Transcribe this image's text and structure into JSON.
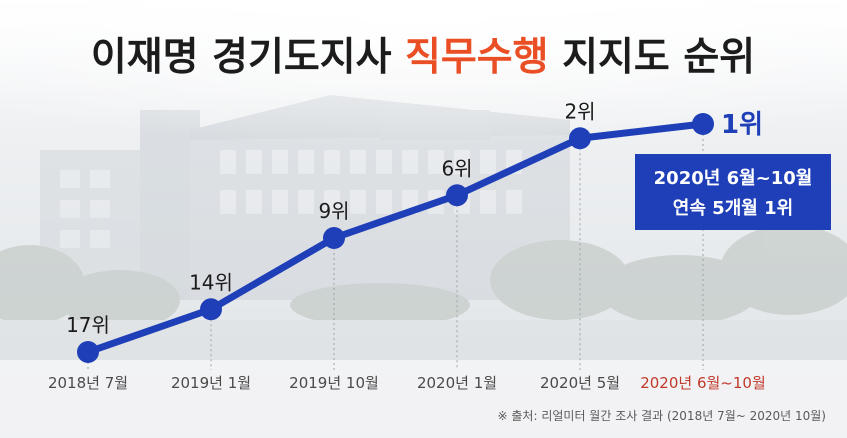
{
  "title": {
    "part1": "이재명 경기도지사 ",
    "highlight": "직무수행",
    "part2": " 지지도 순위"
  },
  "colors": {
    "line": "#1f3fb8",
    "title_dark": "#1c1c1c",
    "title_highlight": "#ea4e24",
    "callout_bg": "#1f3fb8",
    "last_x_label": "#c0392b"
  },
  "callout": {
    "line1": "2020년 6월~10월",
    "line2": "연속 5개월 1위"
  },
  "source_note": "※ 출처: 리얼미터 월간 조사 결과 (2018년 7월~ 2020년 10월)",
  "chart_data": {
    "type": "line",
    "title": "이재명 경기도지사 직무수행 지지도 순위",
    "categories": [
      "2018년 7월",
      "2019년 1월",
      "2019년 10월",
      "2020년 1월",
      "2020년 5월",
      "2020년 6월~10월"
    ],
    "values": [
      17,
      14,
      9,
      6,
      2,
      1
    ],
    "point_labels": [
      "17위",
      "14위",
      "9위",
      "6위",
      "2위",
      "1위"
    ],
    "y_axis": "rank (inverted, 1 = top)",
    "grid": false,
    "legend": "none"
  }
}
